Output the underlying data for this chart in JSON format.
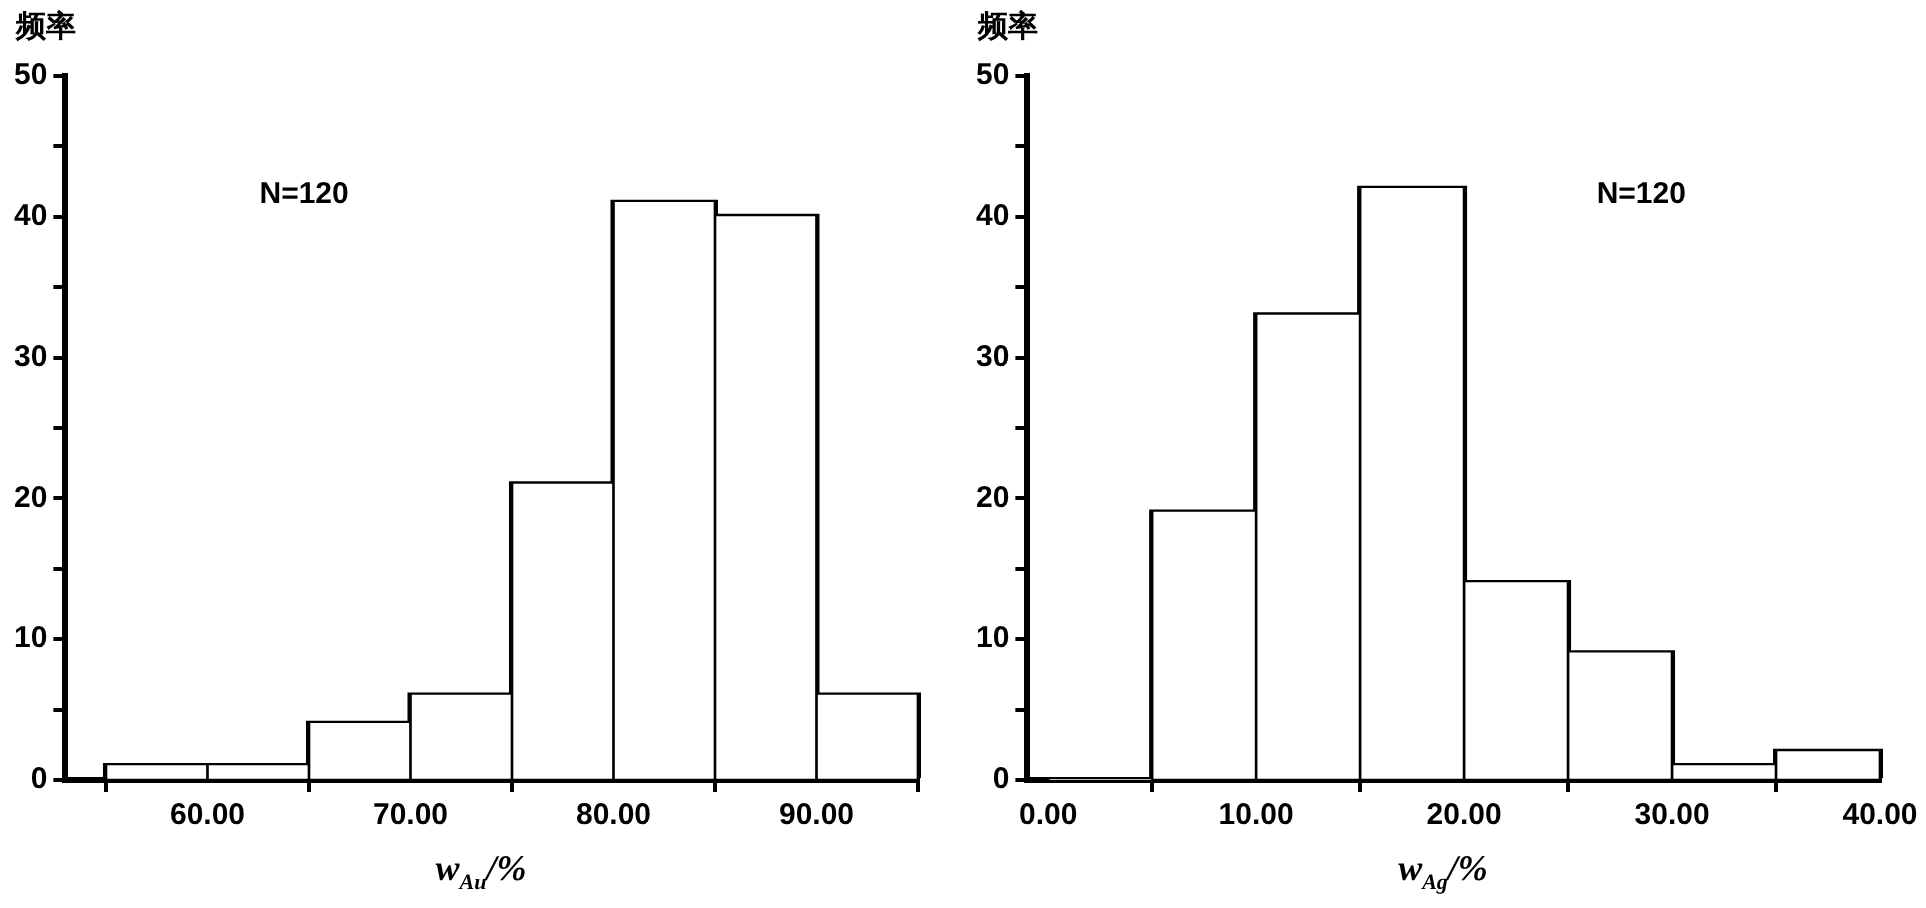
{
  "chart_data": [
    {
      "type": "histogram",
      "ylabel": "频率",
      "xlabel": "w$_{Au}$/%",
      "annotations": [
        "N=120"
      ],
      "color": "#ffffff",
      "bins": [
        55,
        60,
        65,
        70,
        75,
        80,
        85,
        90,
        95
      ],
      "values": [
        1,
        1,
        4,
        6,
        21,
        41,
        40,
        6
      ],
      "xlim": [
        53,
        95
      ],
      "xticks": [
        {
          "value": 60,
          "label": "60.00"
        },
        {
          "value": 70,
          "label": "70.00"
        },
        {
          "value": 80,
          "label": "80.00"
        },
        {
          "value": 90,
          "label": "90.00"
        }
      ],
      "ylim": [
        0,
        50
      ],
      "yticks": [
        0,
        {
          "value": 5,
          "label": null
        },
        10,
        {
          "value": 15,
          "label": null
        },
        20,
        {
          "value": 25,
          "label": null
        },
        30,
        {
          "value": 35,
          "label": null
        },
        40,
        {
          "value": 45,
          "label": null
        },
        50
      ]
    },
    {
      "type": "histogram",
      "ylabel": "频率",
      "xlabel": "w$_{Ag}$/%",
      "annotations": [
        "N=120"
      ],
      "color": "#ffffff",
      "bins": [
        0,
        5,
        10,
        15,
        20,
        25,
        30,
        35,
        40
      ],
      "values": [
        0,
        19,
        33,
        42,
        14,
        9,
        1,
        2
      ],
      "xlim": [
        -1,
        40
      ],
      "xticks": [
        {
          "value": 0,
          "label": "0.00"
        },
        {
          "value": 10,
          "label": "10.00"
        },
        {
          "value": 20,
          "label": "20.00"
        },
        {
          "value": 30,
          "label": "30.00"
        },
        {
          "value": 40,
          "label": "40.00"
        }
      ],
      "ylim": [
        0,
        50
      ],
      "yticks": [
        0,
        {
          "value": 5,
          "label": null
        },
        10,
        {
          "value": 15,
          "label": null
        },
        20,
        {
          "value": 25,
          "label": null
        },
        30,
        {
          "value": 35,
          "label": null
        },
        40,
        {
          "value": 45,
          "label": null
        },
        50
      ]
    }
  ]
}
